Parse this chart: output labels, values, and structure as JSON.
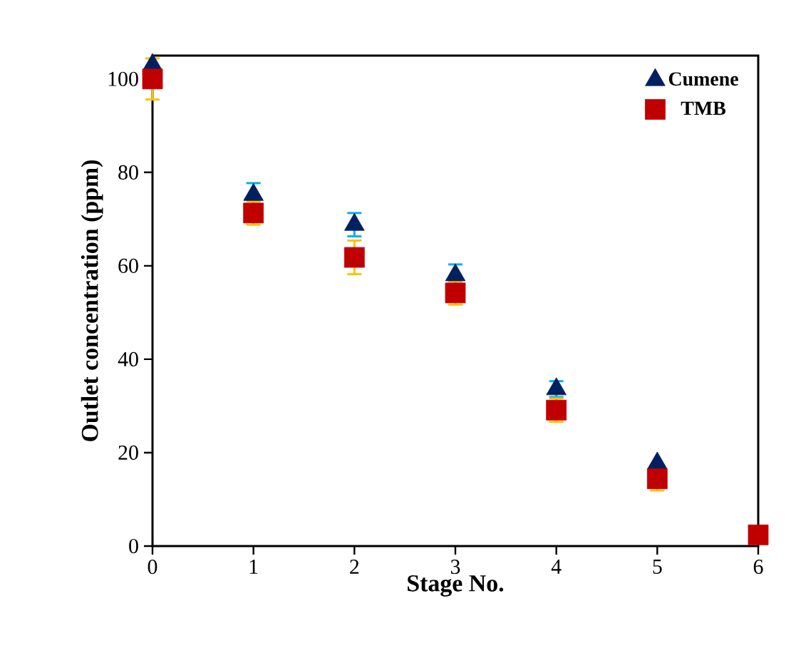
{
  "chart_data": {
    "type": "scatter",
    "xlabel": "Stage No.",
    "ylabel": "Outlet concentration (ppm)",
    "x": [
      0,
      1,
      2,
      3,
      4,
      5,
      6
    ],
    "series": [
      {
        "name": "Cumene",
        "color": "#002060",
        "marker": "triangle",
        "values": [
          103,
          75.2,
          68.8,
          58,
          33.6,
          17.7,
          null
        ],
        "errors": [
          null,
          2.5,
          2.5,
          2.3,
          1.7,
          null,
          null
        ]
      },
      {
        "name": "TMB",
        "color": "#c00000",
        "marker": "square",
        "values": [
          100,
          71.3,
          61.8,
          54.2,
          29.1,
          14.4,
          2.4
        ],
        "errors": [
          4.4,
          2.5,
          3.6,
          2.5,
          2.5,
          2.5,
          null
        ]
      }
    ],
    "xlim": [
      0,
      6
    ],
    "xticks": [
      0,
      1,
      2,
      3,
      4,
      5,
      6
    ],
    "ylim": [
      0,
      105
    ],
    "yticks": [
      0,
      20,
      40,
      60,
      80,
      100
    ],
    "grid": false,
    "legend": "top right"
  }
}
